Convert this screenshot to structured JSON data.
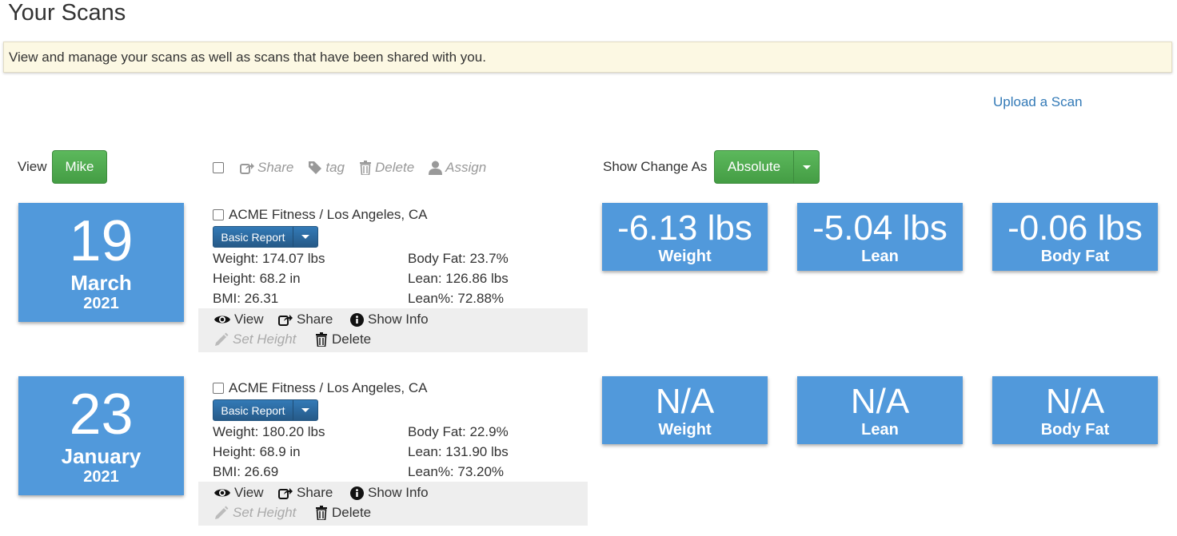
{
  "page": {
    "title": "Your Scans",
    "notice": "View and manage your scans as well as scans that have been shared with you.",
    "upload_link": "Upload a Scan"
  },
  "view_filter": {
    "label": "View",
    "user": "Mike"
  },
  "toolbar": {
    "share": "Share",
    "tag": "tag",
    "delete": "Delete",
    "assign": "Assign"
  },
  "show_change": {
    "label": "Show Change As",
    "value": "Absolute"
  },
  "scans": [
    {
      "day": "19",
      "month": "March",
      "year": "2021",
      "location": "ACME Fitness / Los Angeles, CA",
      "report": "Basic Report",
      "weight": "Weight: 174.07 lbs",
      "height": "Height: 68.2 in",
      "bmi": "BMI: 26.31",
      "body_fat": "Body Fat: 23.7%",
      "lean": "Lean: 126.86 lbs",
      "lean_pct": "Lean%: 72.88%",
      "actions": {
        "view": "View",
        "share": "Share",
        "show_info": "Show Info",
        "set_height": "Set Height",
        "delete": "Delete"
      },
      "changes": [
        {
          "value": "-6.13 lbs",
          "label": "Weight"
        },
        {
          "value": "-5.04 lbs",
          "label": "Lean"
        },
        {
          "value": "-0.06 lbs",
          "label": "Body Fat"
        }
      ]
    },
    {
      "day": "23",
      "month": "January",
      "year": "2021",
      "location": "ACME Fitness / Los Angeles, CA",
      "report": "Basic Report",
      "weight": "Weight: 180.20 lbs",
      "height": "Height: 68.9 in",
      "bmi": "BMI: 26.69",
      "body_fat": "Body Fat: 22.9%",
      "lean": "Lean: 131.90 lbs",
      "lean_pct": "Lean%: 73.20%",
      "actions": {
        "view": "View",
        "share": "Share",
        "show_info": "Show Info",
        "set_height": "Set Height",
        "delete": "Delete"
      },
      "changes": [
        {
          "value": "N/A",
          "label": "Weight"
        },
        {
          "value": "N/A",
          "label": "Lean"
        },
        {
          "value": "N/A",
          "label": "Body Fat"
        }
      ]
    }
  ],
  "colors": {
    "tile": "#5199db",
    "green": "#5cb85c",
    "primary": "#337ab7",
    "notice_bg": "#fcf8e3"
  }
}
